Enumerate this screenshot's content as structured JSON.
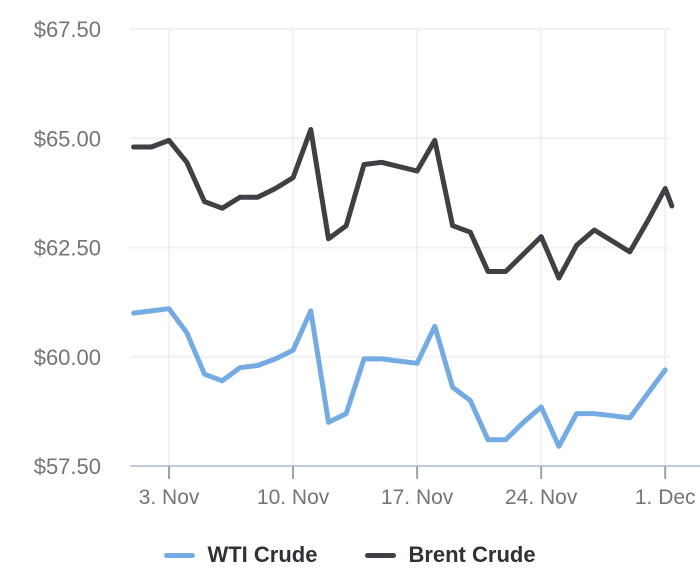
{
  "chart_data": {
    "type": "line",
    "title": "",
    "xlabel": "",
    "ylabel": "",
    "grid": true,
    "legend_position": "bottom",
    "x": [
      "1. Nov",
      "2. Nov",
      "3. Nov",
      "4. Nov",
      "5. Nov",
      "6. Nov",
      "7. Nov",
      "8. Nov",
      "9. Nov",
      "10. Nov",
      "11. Nov",
      "12. Nov",
      "13. Nov",
      "14. Nov",
      "15. Nov",
      "16. Nov",
      "17. Nov",
      "18. Nov",
      "19. Nov",
      "20. Nov",
      "21. Nov",
      "22. Nov",
      "23. Nov",
      "24. Nov",
      "25. Nov",
      "26. Nov",
      "27. Nov",
      "28. Nov",
      "29. Nov",
      "30. Nov",
      "1. Dec"
    ],
    "series": [
      {
        "name": "WTI Crude",
        "color": "#74ABE2",
        "values": [
          61.0,
          61.05,
          61.1,
          60.55,
          59.6,
          59.45,
          59.75,
          59.8,
          59.95,
          60.15,
          61.05,
          58.5,
          58.7,
          59.95,
          59.95,
          59.9,
          59.85,
          60.7,
          59.3,
          59.0,
          58.1,
          58.1,
          58.5,
          58.85,
          57.95,
          58.7,
          58.7,
          58.65,
          58.6,
          59.15,
          59.7
        ]
      },
      {
        "name": "Brent Crude",
        "color": "#3E4046",
        "values": [
          64.8,
          64.8,
          64.95,
          64.45,
          63.55,
          63.4,
          63.65,
          63.65,
          63.85,
          64.1,
          65.2,
          62.7,
          63.0,
          64.4,
          64.45,
          64.35,
          64.25,
          64.95,
          63.0,
          62.85,
          61.95,
          61.95,
          62.35,
          62.75,
          61.8,
          62.55,
          62.9,
          62.65,
          62.4,
          63.1,
          63.85
        ],
        "clipped_end": {
          "x_index": 30.38,
          "value": 63.45
        }
      }
    ],
    "y_axis": {
      "range": [
        57.5,
        67.5
      ],
      "ticks": [
        {
          "label": "$67.50",
          "value": 67.5
        },
        {
          "label": "$65.00",
          "value": 65.0
        },
        {
          "label": "$62.50",
          "value": 62.5
        },
        {
          "label": "$60.00",
          "value": 60.0
        },
        {
          "label": "$57.50",
          "value": 57.5
        }
      ]
    },
    "x_axis": {
      "ticks": [
        {
          "label": "3. Nov",
          "index": 2
        },
        {
          "label": "10. Nov",
          "index": 9
        },
        {
          "label": "17. Nov",
          "index": 16
        },
        {
          "label": "24. Nov",
          "index": 23
        },
        {
          "label": "1. Dec",
          "index": 30
        }
      ]
    }
  },
  "colors": {
    "background": "#FFFFFF",
    "grid": "#F1F1F1",
    "axis_line": "#BFCCDC",
    "tick_mark": "#9DA2A7",
    "axis_label": "#757575",
    "legend_text": "#2E3237"
  }
}
